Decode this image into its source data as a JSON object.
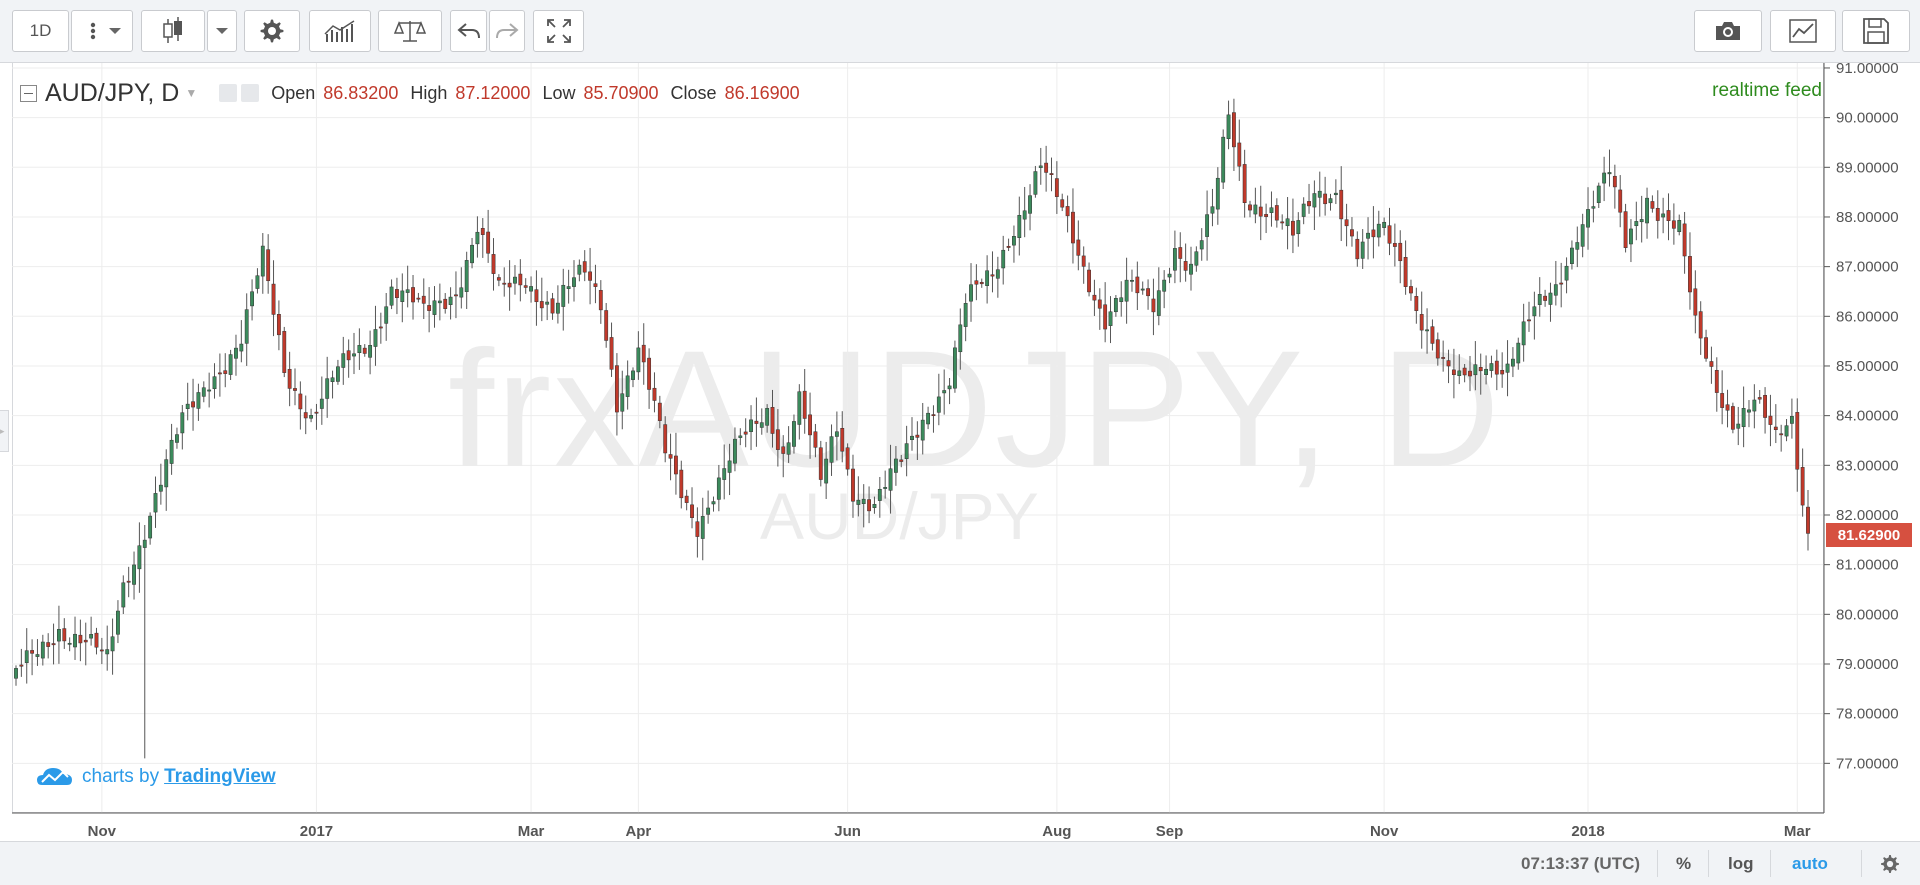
{
  "toolbar": {
    "interval": "1D",
    "icons": [
      "more-vertical-icon",
      "chevron-down-icon",
      "candlestick-icon",
      "chevron-down-icon",
      "gear-icon",
      "indicators-icon",
      "compare-icon",
      "undo-icon",
      "redo-icon",
      "fullscreen-icon",
      "camera-icon",
      "chart-properties-icon",
      "save-icon"
    ]
  },
  "legend": {
    "symbol": "AUD/JPY, D",
    "open_label": "Open",
    "open": "86.83200",
    "high_label": "High",
    "high": "87.12000",
    "low_label": "Low",
    "low": "85.70900",
    "close_label": "Close",
    "close": "86.16900"
  },
  "feed_status": "realtime feed",
  "watermark": {
    "symbol": "frxAUDJPY, D",
    "description": "AUD/JPY"
  },
  "branding": {
    "prefix": "charts by",
    "link": "TradingView"
  },
  "current_price": "81.62900",
  "bottom_bar": {
    "time": "07:13:37 (UTC)",
    "percent": "%",
    "log": "log",
    "auto": "auto"
  },
  "colors": {
    "up": "#3c8a5c",
    "down": "#c0392b",
    "grid": "#ededed",
    "price_tag": "#d65040",
    "auto_active": "#2b9ae8"
  },
  "chart_data": {
    "type": "candlestick",
    "title": "",
    "xlabel": "",
    "ylabel": "",
    "ylim": [
      76,
      91.1
    ],
    "y_ticks": [
      "77.00000",
      "78.00000",
      "79.00000",
      "80.00000",
      "81.00000",
      "82.00000",
      "83.00000",
      "84.00000",
      "85.00000",
      "86.00000",
      "87.00000",
      "88.00000",
      "89.00000",
      "90.00000",
      "91.00000"
    ],
    "x_ticks": [
      {
        "label": "Nov",
        "index": 16
      },
      {
        "label": "2017",
        "index": 56
      },
      {
        "label": "Mar",
        "index": 96
      },
      {
        "label": "Apr",
        "index": 116
      },
      {
        "label": "Jun",
        "index": 155
      },
      {
        "label": "Aug",
        "index": 194
      },
      {
        "label": "Sep",
        "index": 215
      },
      {
        "label": "Nov",
        "index": 255
      },
      {
        "label": "2018",
        "index": 293
      },
      {
        "label": "Mar",
        "index": 332
      }
    ],
    "candle_count": 335,
    "grid": true,
    "anchors": [
      [
        0,
        78.7
      ],
      [
        8,
        79.8
      ],
      [
        14,
        79.3
      ],
      [
        17,
        79.0
      ],
      [
        20,
        80.6
      ],
      [
        26,
        82.4
      ],
      [
        31,
        83.8
      ],
      [
        36,
        84.8
      ],
      [
        42,
        85.5
      ],
      [
        46,
        87.1
      ],
      [
        50,
        85.0
      ],
      [
        55,
        84.0
      ],
      [
        60,
        84.8
      ],
      [
        66,
        85.6
      ],
      [
        70,
        86.6
      ],
      [
        76,
        86.0
      ],
      [
        82,
        86.6
      ],
      [
        86,
        87.8
      ],
      [
        90,
        86.4
      ],
      [
        95,
        86.8
      ],
      [
        100,
        86.2
      ],
      [
        106,
        86.8
      ],
      [
        109,
        86.3
      ],
      [
        112,
        84.4
      ],
      [
        116,
        85.3
      ],
      [
        121,
        83.2
      ],
      [
        127,
        81.9
      ],
      [
        131,
        82.6
      ],
      [
        135,
        83.4
      ],
      [
        140,
        84.2
      ],
      [
        143,
        83.3
      ],
      [
        146,
        84.3
      ],
      [
        150,
        82.6
      ],
      [
        153,
        83.8
      ],
      [
        156,
        82.6
      ],
      [
        160,
        82.2
      ],
      [
        165,
        83.0
      ],
      [
        170,
        84.2
      ],
      [
        174,
        84.8
      ],
      [
        177,
        86.2
      ],
      [
        182,
        86.8
      ],
      [
        186,
        87.9
      ],
      [
        191,
        89.0
      ],
      [
        196,
        87.8
      ],
      [
        200,
        86.8
      ],
      [
        203,
        86.0
      ],
      [
        207,
        86.5
      ],
      [
        212,
        86.2
      ],
      [
        216,
        87.5
      ],
      [
        219,
        87.0
      ],
      [
        223,
        88.0
      ],
      [
        226,
        90.0
      ],
      [
        229,
        88.5
      ],
      [
        234,
        88.1
      ],
      [
        238,
        87.5
      ],
      [
        242,
        88.5
      ],
      [
        246,
        88.6
      ],
      [
        250,
        87.2
      ],
      [
        255,
        87.7
      ],
      [
        258,
        87.2
      ],
      [
        262,
        86.0
      ],
      [
        266,
        84.9
      ],
      [
        269,
        84.6
      ],
      [
        274,
        85.2
      ],
      [
        278,
        85.0
      ],
      [
        283,
        86.0
      ],
      [
        287,
        86.6
      ],
      [
        291,
        87.8
      ],
      [
        294,
        88.3
      ],
      [
        297,
        88.8
      ],
      [
        300,
        87.4
      ],
      [
        304,
        88.5
      ],
      [
        307,
        88.1
      ],
      [
        310,
        87.7
      ],
      [
        313,
        85.7
      ],
      [
        317,
        84.6
      ],
      [
        320,
        84.0
      ],
      [
        324,
        84.3
      ],
      [
        328,
        83.4
      ],
      [
        331,
        83.9
      ],
      [
        334,
        81.6
      ]
    ]
  }
}
